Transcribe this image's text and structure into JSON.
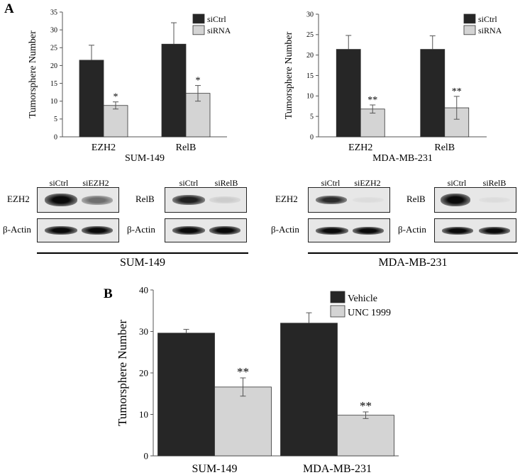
{
  "panel_a_label": "A",
  "panel_b_label": "B",
  "chart_data": [
    {
      "type": "bar",
      "panel": "A",
      "cell_line": "SUM-149",
      "categories": [
        "EZH2",
        "RelB"
      ],
      "series": [
        {
          "name": "siCtrl",
          "color": "#262626",
          "values": [
            21.5,
            26
          ],
          "errors": [
            4.2,
            6
          ]
        },
        {
          "name": "siRNA",
          "color": "#d4d4d4",
          "values": [
            8.8,
            12.2
          ],
          "errors": [
            1,
            2.2
          ]
        }
      ],
      "significance": [
        "*",
        "*"
      ],
      "ylabel": "Tumorsphere Number",
      "xlabel": "SUM-149",
      "ylim": [
        0,
        35
      ],
      "yticks": [
        "0",
        "5",
        "10",
        "15",
        "20",
        "25",
        "30",
        "35"
      ],
      "legend_position": "top-right",
      "grid": false
    },
    {
      "type": "bar",
      "panel": "A",
      "cell_line": "MDA-MB-231",
      "categories": [
        "EZH2",
        "RelB"
      ],
      "series": [
        {
          "name": "siCtrl",
          "color": "#262626",
          "values": [
            21.4,
            21.4
          ],
          "errors": [
            3.4,
            3.3
          ]
        },
        {
          "name": "siRNA",
          "color": "#d4d4d4",
          "values": [
            6.8,
            7.1
          ],
          "errors": [
            1,
            2.8
          ]
        }
      ],
      "significance": [
        "**",
        "**"
      ],
      "ylabel": "Tumorsphere Number",
      "xlabel": "MDA-MB-231",
      "ylim": [
        0,
        30
      ],
      "yticks": [
        "0",
        "5",
        "10",
        "15",
        "20",
        "25",
        "30"
      ],
      "legend_position": "top-right",
      "grid": false
    },
    {
      "type": "bar",
      "panel": "B",
      "categories": [
        "SUM-149",
        "MDA-MB-231"
      ],
      "series": [
        {
          "name": "Vehicle",
          "color": "#262626",
          "values": [
            29.6,
            32
          ],
          "errors": [
            0.9,
            2.5
          ]
        },
        {
          "name": "UNC 1999",
          "color": "#d4d4d4",
          "values": [
            16.6,
            9.8
          ],
          "errors": [
            2.2,
            0.8
          ]
        }
      ],
      "significance": [
        "**",
        "**"
      ],
      "ylabel": "Tumorsphere Number",
      "xlabel": "",
      "ylim": [
        0,
        40
      ],
      "yticks": [
        "0",
        "10",
        "20",
        "30",
        "40"
      ],
      "legend_position": "top-right",
      "grid": false
    }
  ],
  "blots": {
    "sum149_ezh2": {
      "lane_heads": [
        "siCtrl",
        "siEZH2"
      ],
      "target_label": "EZH2",
      "loading_label": "β-Actin",
      "target_intensity": [
        1.0,
        0.55
      ],
      "loading_intensity": [
        1.0,
        1.0
      ]
    },
    "sum149_relb": {
      "lane_heads": [
        "siCtrl",
        "siRelB"
      ],
      "target_label": "RelB",
      "loading_label": "β-Actin",
      "target_intensity": [
        0.9,
        0.12
      ],
      "loading_intensity": [
        1.0,
        1.0
      ]
    },
    "mda_ezh2": {
      "lane_heads": [
        "siCtrl",
        "siEZH2"
      ],
      "target_label": "EZH2",
      "loading_label": "β-Actin",
      "target_intensity": [
        0.85,
        0.05
      ],
      "loading_intensity": [
        1.0,
        1.0
      ]
    },
    "mda_relb": {
      "lane_heads": [
        "siCtrl",
        "siRelB"
      ],
      "target_label": "RelB",
      "loading_label": "β-Actin",
      "target_intensity": [
        1.0,
        0.05
      ],
      "loading_intensity": [
        1.0,
        1.0
      ]
    },
    "group_labels": [
      "SUM-149",
      "MDA-MB-231"
    ]
  }
}
